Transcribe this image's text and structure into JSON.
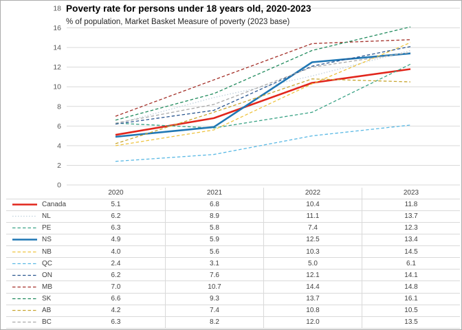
{
  "title": "Poverty rate for persons under 18 years old, 2020-2023",
  "subtitle": "% of population, Market Basket Measure of poverty (2023 base)",
  "chart_data": {
    "type": "line",
    "categories": [
      "2020",
      "2021",
      "2022",
      "2023"
    ],
    "series": [
      {
        "name": "Canada",
        "color": "#e1251b",
        "style": "solid",
        "width": 2.6,
        "values": [
          5.1,
          6.8,
          10.4,
          11.8
        ]
      },
      {
        "name": "NL",
        "color": "#c3d2de",
        "style": "dotted",
        "width": 1.3,
        "values": [
          6.2,
          8.9,
          11.1,
          13.7
        ]
      },
      {
        "name": "PE",
        "color": "#3aa385",
        "style": "dashed",
        "width": 1.3,
        "values": [
          6.3,
          5.8,
          7.4,
          12.3
        ]
      },
      {
        "name": "NS",
        "color": "#1f77b4",
        "style": "solid",
        "width": 2.6,
        "values": [
          4.9,
          5.9,
          12.5,
          13.4
        ]
      },
      {
        "name": "NB",
        "color": "#eec33e",
        "style": "dashed",
        "width": 1.3,
        "values": [
          4.0,
          5.6,
          10.3,
          14.5
        ]
      },
      {
        "name": "QC",
        "color": "#58b8e4",
        "style": "dashed",
        "width": 1.3,
        "values": [
          2.4,
          3.1,
          5.0,
          6.1
        ]
      },
      {
        "name": "ON",
        "color": "#27548e",
        "style": "dashed",
        "width": 1.3,
        "values": [
          6.2,
          7.6,
          12.1,
          14.1
        ]
      },
      {
        "name": "MB",
        "color": "#a32e27",
        "style": "dashed",
        "width": 1.3,
        "values": [
          7.0,
          10.7,
          14.4,
          14.8
        ]
      },
      {
        "name": "SK",
        "color": "#1f8a5c",
        "style": "dashed",
        "width": 1.3,
        "values": [
          6.6,
          9.3,
          13.7,
          16.1
        ]
      },
      {
        "name": "AB",
        "color": "#c7a42d",
        "style": "dashed",
        "width": 1.3,
        "values": [
          4.2,
          7.4,
          10.8,
          10.5
        ]
      },
      {
        "name": "BC",
        "color": "#a8a8a8",
        "style": "dashed",
        "width": 1.3,
        "values": [
          6.3,
          8.2,
          12.0,
          13.5
        ]
      }
    ],
    "ylim": [
      0,
      18
    ],
    "y_ticks": [
      0,
      2,
      4,
      6,
      8,
      10,
      12,
      14,
      16,
      18
    ],
    "grid": true,
    "legend_position": "table-left-column"
  },
  "colors": {
    "grid": "#d9d9d9",
    "tick_label": "#595959",
    "table_border": "#d9d9d9",
    "table_text": "#404040",
    "frame_border": "#ababab"
  }
}
